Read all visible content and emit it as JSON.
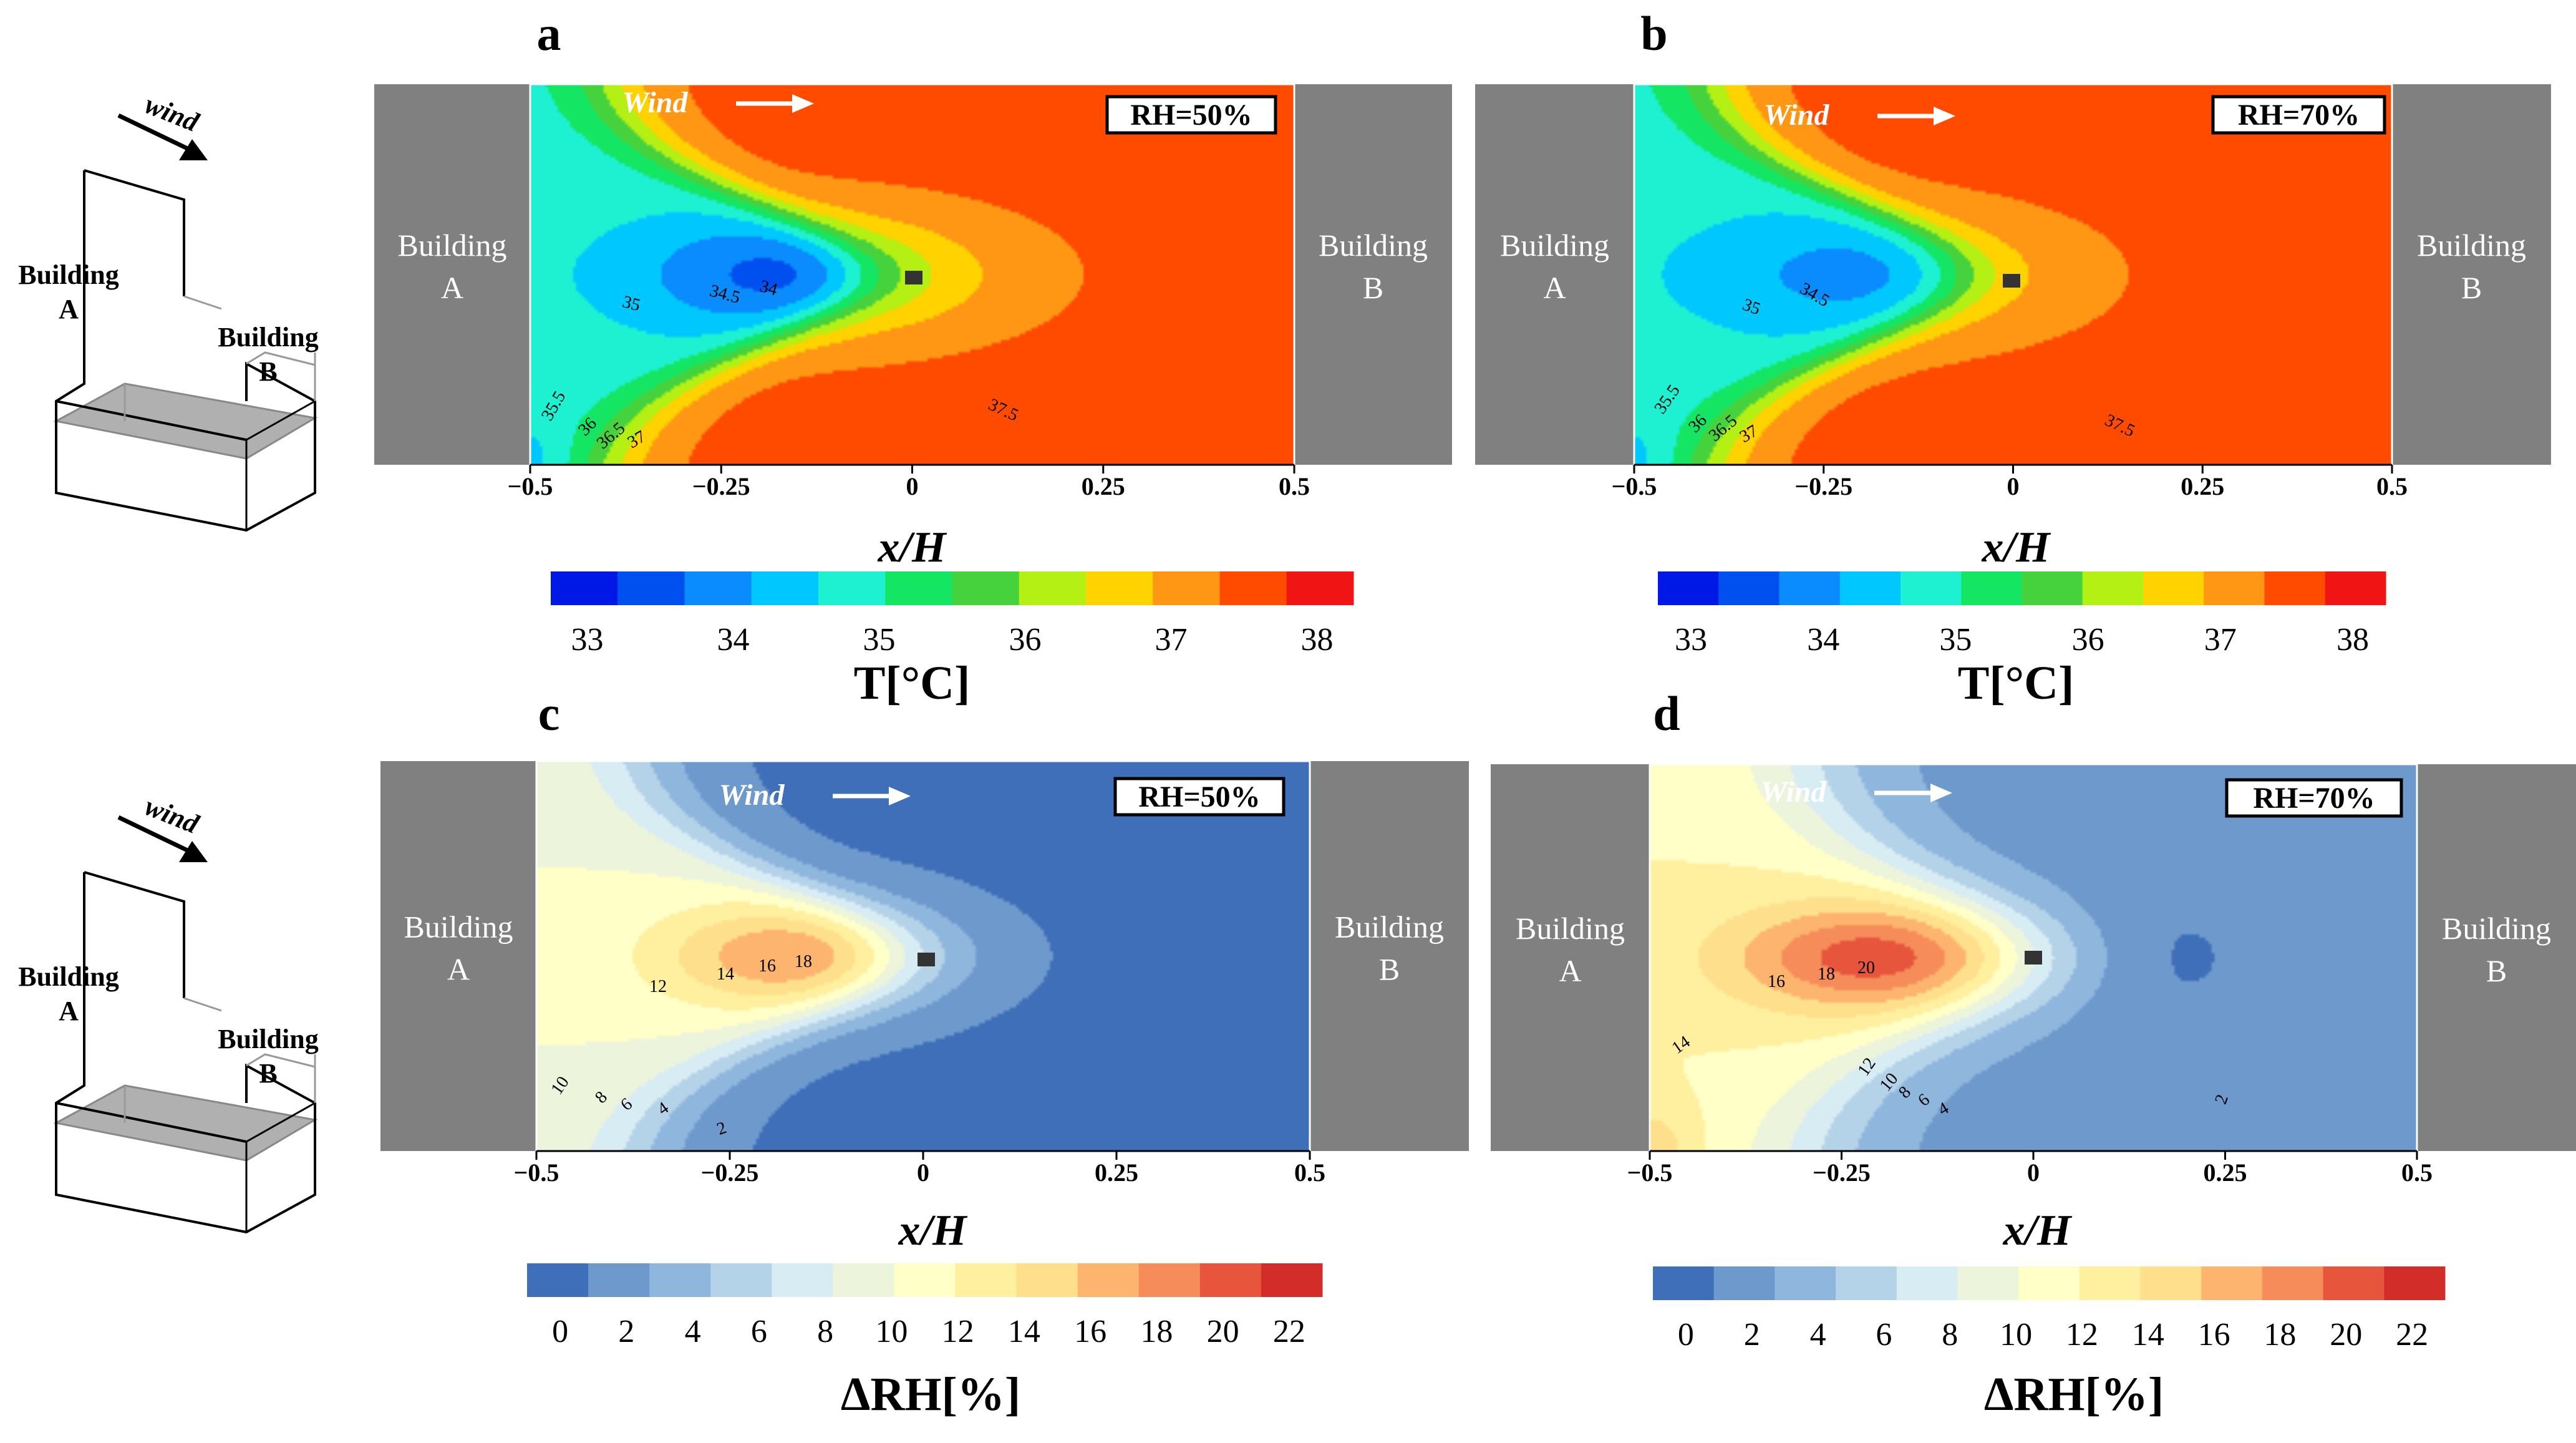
{
  "colors": {
    "building": "#808080",
    "temperature_scale": [
      "#0018e6",
      "#0050f0",
      "#0a8cff",
      "#00c8ff",
      "#1ef0d2",
      "#14e664",
      "#46d23c",
      "#b4f014",
      "#ffd200",
      "#ff9614",
      "#ff4b00",
      "#f01414"
    ],
    "humidity_scale": [
      "#3f6fb8",
      "#6d99cc",
      "#8fb6dc",
      "#b4d2e8",
      "#d8ecf4",
      "#ecf4dc",
      "#ffffc8",
      "#fff0a0",
      "#fee08c",
      "#fdb46e",
      "#f58c5a",
      "#e6553c",
      "#d22d28"
    ]
  },
  "icons": [
    "street-canyon-sketch-icon",
    "wind-arrow-icon",
    "probe-marker-icon"
  ],
  "sketches": [
    {
      "wind": "wind",
      "building_a": [
        "Building",
        "A"
      ],
      "building_b": [
        "Building",
        "B"
      ]
    },
    {
      "wind": "wind",
      "building_a": [
        "Building",
        "A"
      ],
      "building_b": [
        "Building",
        "B"
      ]
    }
  ],
  "chart_data": [
    {
      "type": "contour",
      "panel_letter": "a",
      "variable": "temperature",
      "rh_label": "RH=50%",
      "wind_label": "Wind",
      "building_a": [
        "Building",
        "A"
      ],
      "building_b": [
        "Building",
        "B"
      ],
      "xlabel": "x/H",
      "xlim": [
        -0.5,
        0.5
      ],
      "xticks": [
        "−0.5",
        "−0.25",
        "0",
        "0.25",
        "0.5"
      ],
      "contour_labels": [
        "34",
        "34.5",
        "35",
        "35.5",
        "36",
        "36.5",
        "37",
        "37.5"
      ],
      "colorbar": {
        "label": "T[°C]",
        "min": 32.75,
        "max": 38.25,
        "step": 0.5,
        "tick_values": [
          33,
          34,
          35,
          36,
          37,
          38
        ],
        "ticks": [
          "33",
          "34",
          "35",
          "36",
          "37",
          "38"
        ]
      }
    },
    {
      "type": "contour",
      "panel_letter": "b",
      "variable": "temperature",
      "rh_label": "RH=70%",
      "wind_label": "Wind",
      "building_a": [
        "Building",
        "A"
      ],
      "building_b": [
        "Building",
        "B"
      ],
      "xlabel": "x/H",
      "xlim": [
        -0.5,
        0.5
      ],
      "xticks": [
        "−0.5",
        "−0.25",
        "0",
        "0.25",
        "0.5"
      ],
      "contour_labels": [
        "34.5",
        "35",
        "35.5",
        "36",
        "36.5",
        "37",
        "37.5"
      ],
      "colorbar": {
        "label": "T[°C]",
        "min": 32.75,
        "max": 38.25,
        "step": 0.5,
        "tick_values": [
          33,
          34,
          35,
          36,
          37,
          38
        ],
        "ticks": [
          "33",
          "34",
          "35",
          "36",
          "37",
          "38"
        ]
      }
    },
    {
      "type": "contour",
      "panel_letter": "c",
      "variable": "delta_rh",
      "rh_label": "RH=50%",
      "wind_label": "Wind",
      "building_a": [
        "Building",
        "A"
      ],
      "building_b": [
        "Building",
        "B"
      ],
      "xlabel": "x/H",
      "xlim": [
        -0.5,
        0.5
      ],
      "xticks": [
        "−0.5",
        "−0.25",
        "0",
        "0.25",
        "0.5"
      ],
      "contour_labels": [
        "2",
        "4",
        "6",
        "8",
        "10",
        "12",
        "14",
        "16",
        "18"
      ],
      "colorbar": {
        "label": "ΔRH[%]",
        "min": -1,
        "max": 23,
        "step": 2,
        "tick_values": [
          0,
          2,
          4,
          6,
          8,
          10,
          12,
          14,
          16,
          18,
          20,
          22
        ],
        "ticks": [
          "0",
          "2",
          "4",
          "6",
          "8",
          "10",
          "12",
          "14",
          "16",
          "18",
          "20",
          "22"
        ]
      }
    },
    {
      "type": "contour",
      "panel_letter": "d",
      "variable": "delta_rh",
      "rh_label": "RH=70%",
      "wind_label": "Wind",
      "building_a": [
        "Building",
        "A"
      ],
      "building_b": [
        "Building",
        "B"
      ],
      "xlabel": "x/H",
      "xlim": [
        -0.5,
        0.5
      ],
      "xticks": [
        "−0.5",
        "−0.25",
        "0",
        "0.25",
        "0.5"
      ],
      "contour_labels": [
        "2",
        "4",
        "6",
        "8",
        "10",
        "12",
        "14",
        "16",
        "18",
        "20"
      ],
      "colorbar": {
        "label": "ΔRH[%]",
        "min": -1,
        "max": 23,
        "step": 2,
        "tick_values": [
          0,
          2,
          4,
          6,
          8,
          10,
          12,
          14,
          16,
          18,
          20,
          22
        ],
        "ticks": [
          "0",
          "2",
          "4",
          "6",
          "8",
          "10",
          "12",
          "14",
          "16",
          "18",
          "20",
          "22"
        ]
      }
    }
  ]
}
